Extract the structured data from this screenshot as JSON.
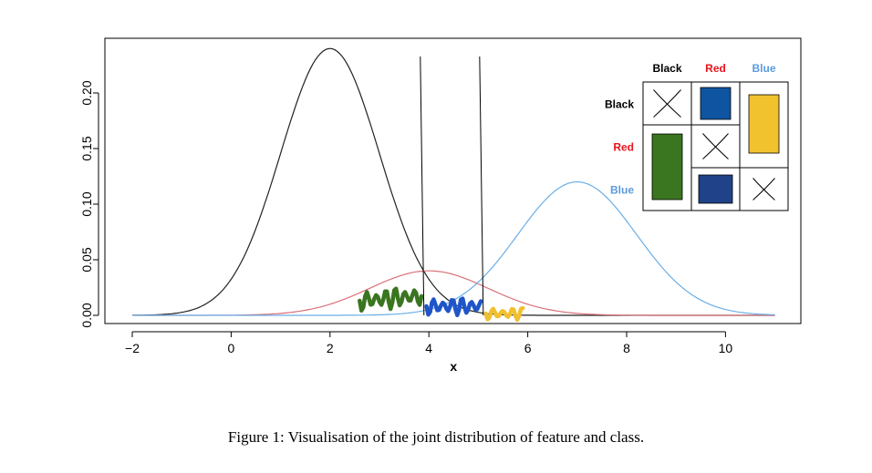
{
  "caption": "Figure 1: Visualisation of the joint distribution of feature and class.",
  "chart_data": {
    "type": "line",
    "title": "",
    "xlabel": "x",
    "ylabel": "",
    "xlim": [
      -2,
      11
    ],
    "ylim": [
      0,
      0.24
    ],
    "x_ticks": [
      -2,
      0,
      2,
      4,
      6,
      8,
      10
    ],
    "y_ticks": [
      0.0,
      0.05,
      0.1,
      0.15,
      0.2
    ],
    "x_tick_labels": [
      "−2",
      "0",
      "2",
      "4",
      "6",
      "8",
      "10"
    ],
    "y_tick_labels": [
      "0.00",
      "0.05",
      "0.10",
      "0.15",
      "0.20"
    ],
    "grid": false,
    "series": [
      {
        "name": "Black",
        "color": "#222222",
        "mean": 2,
        "sd": 1.0,
        "peak": 0.24
      },
      {
        "name": "Red",
        "color": "#d9707a",
        "mean": 4,
        "sd": 1.2,
        "peak": 0.04
      },
      {
        "name": "Blue",
        "color": "#6aaee6",
        "mean": 7,
        "sd": 1.2,
        "peak": 0.12
      }
    ],
    "vertical_lines": [
      3.9,
      5.1
    ],
    "squiggles": [
      {
        "color": "#3a7520",
        "x_range": [
          2.6,
          3.85
        ]
      },
      {
        "color": "#1f55c8",
        "x_range": [
          3.95,
          5.05
        ]
      },
      {
        "color": "#f0c030",
        "x_range": [
          5.15,
          5.9
        ]
      }
    ],
    "legend": {
      "placement": "top-right",
      "column_labels": [
        "Black",
        "Red",
        "Blue"
      ],
      "row_labels": [
        "Black",
        "Red",
        "Blue"
      ],
      "label_colors": {
        "Black": "#000000",
        "Red": "#e8141c",
        "Blue": "#5b9bdc"
      },
      "fill_colors": {
        "green": "#3a7520",
        "blue_dark": "#0f54a0",
        "navy": "#1f4288",
        "yellow": "#f2c12e"
      }
    }
  }
}
